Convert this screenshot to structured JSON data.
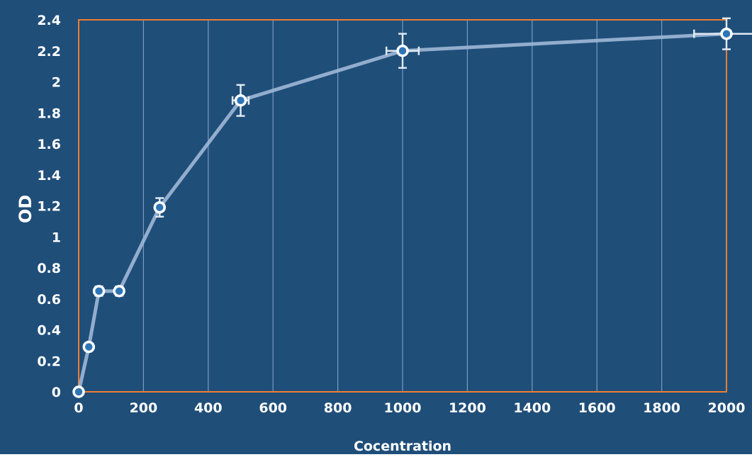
{
  "chart_data": {
    "type": "scatter",
    "title": "",
    "xlabel": "Cocentration",
    "ylabel": "OD",
    "xlim": [
      0,
      2000
    ],
    "ylim": [
      0,
      2.4
    ],
    "x_ticks": [
      0,
      200,
      400,
      600,
      800,
      1000,
      1200,
      1400,
      1600,
      1800,
      2000
    ],
    "y_ticks": [
      0,
      0.2,
      0.4,
      0.6,
      0.8,
      1,
      1.2,
      1.4,
      1.6,
      1.8,
      2,
      2.2,
      2.4
    ],
    "x_tick_labels": [
      "0",
      "200",
      "400",
      "600",
      "800",
      "1000",
      "1200",
      "1400",
      "1600",
      "1800",
      "2000"
    ],
    "y_tick_labels": [
      "0",
      "0.2",
      "0.4",
      "0.6",
      "0.8",
      "1",
      "1.2",
      "1.4",
      "1.6",
      "1.8",
      "2",
      "2.2",
      "2.4"
    ],
    "grid": {
      "vertical": true,
      "horizontal": false
    },
    "connected": true,
    "series": [
      {
        "x": [
          0,
          31.25,
          62.5,
          125,
          250,
          500,
          1000,
          2000
        ],
        "y": [
          0,
          0.29,
          0.65,
          0.65,
          1.19,
          1.88,
          2.2,
          2.31
        ],
        "x_error": [
          0,
          0,
          10,
          10,
          10,
          25,
          50,
          100
        ],
        "y_error": [
          0,
          0,
          0.03,
          0.03,
          0.06,
          0.1,
          0.11,
          0.1
        ]
      }
    ],
    "colors": {
      "background": "#1f4e79",
      "plot_area": "#1f4e79",
      "plot_border": "#ed7d31",
      "gridline": "#7a9cc0",
      "line": "#9fb8d6",
      "marker_fill": "#2e75b6",
      "marker_edge": "#ffffff",
      "error_bar": "#dfe8f2",
      "text": "#ffffff"
    }
  }
}
